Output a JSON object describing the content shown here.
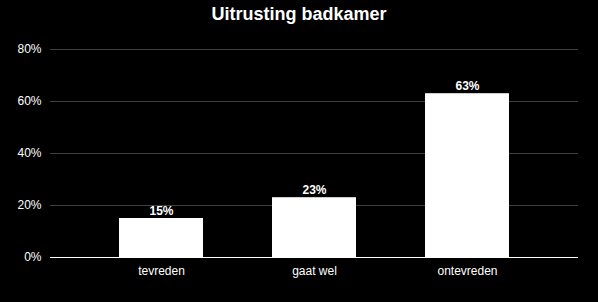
{
  "chart_data": {
    "type": "bar",
    "title": "Uitrusting badkamer",
    "categories": [
      "tevreden",
      "gaat wel",
      "ontevreden"
    ],
    "values": [
      15,
      23,
      63
    ],
    "value_labels": [
      "15%",
      "23%",
      "63%"
    ],
    "color": "#ffffff",
    "ylim": [
      0,
      80
    ],
    "yticks": [
      {
        "value": 0,
        "label": "0%"
      },
      {
        "value": 20,
        "label": "20%"
      },
      {
        "value": 40,
        "label": "40%"
      },
      {
        "value": 60,
        "label": "60%"
      },
      {
        "value": 80,
        "label": "80%"
      }
    ],
    "grid": true,
    "data_labels": true
  }
}
